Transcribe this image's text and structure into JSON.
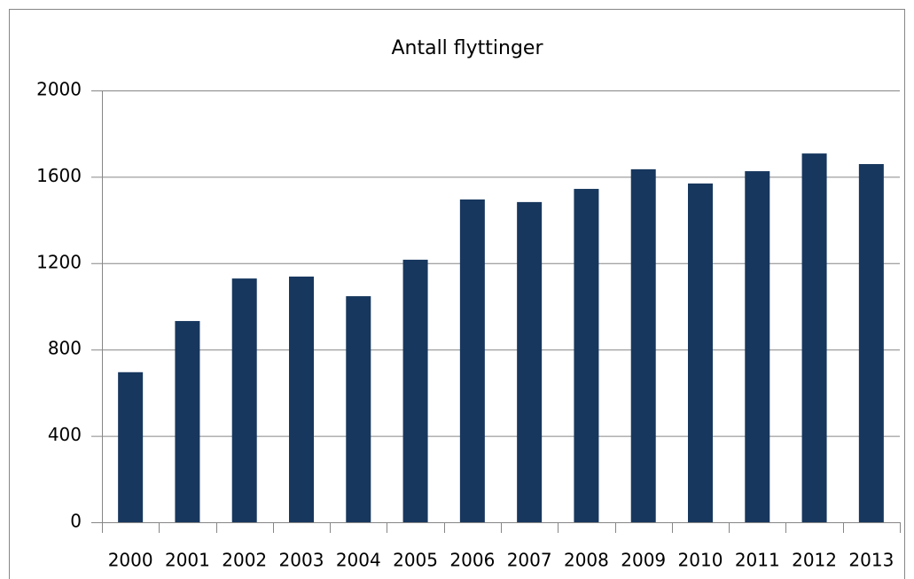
{
  "chart_data": {
    "type": "bar",
    "title": "Antall flyttinger",
    "categories": [
      "2000",
      "2001",
      "2002",
      "2003",
      "2004",
      "2005",
      "2006",
      "2007",
      "2008",
      "2009",
      "2010",
      "2011",
      "2012",
      "2013"
    ],
    "values": [
      695,
      932,
      1129,
      1138,
      1047,
      1216,
      1495,
      1483,
      1544,
      1635,
      1569,
      1626,
      1708,
      1659
    ],
    "color": "#17375e",
    "ylim": [
      0,
      2000
    ],
    "yticks": [
      0,
      400,
      800,
      1200,
      1600,
      2000
    ],
    "grid": true
  }
}
